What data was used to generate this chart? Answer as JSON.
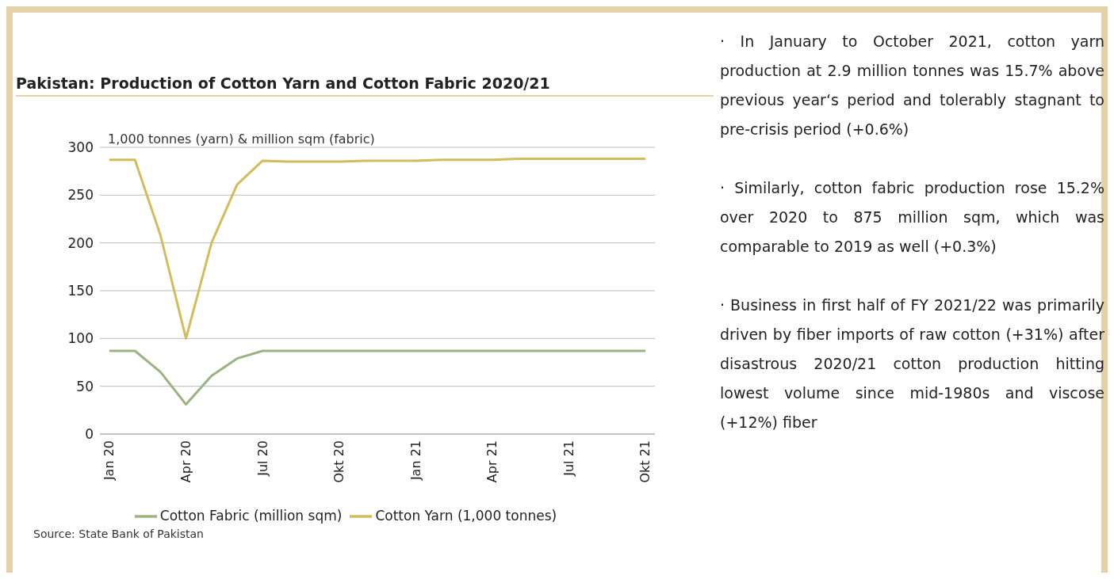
{
  "chart_data": {
    "type": "line",
    "title": "Pakistan: Production of Cotton Yarn and Cotton Fabric 2020/21",
    "ylabel": "1,000 tonnes (yarn) & million sqm (fabric)",
    "categories": [
      "Jan 20",
      null,
      null,
      "Apr 20",
      null,
      null,
      "Jul 20",
      null,
      null,
      "Okt 20",
      null,
      null,
      "Jan 21",
      null,
      null,
      "Apr 21",
      null,
      null,
      "Jul 21",
      null,
      null,
      "Okt 21"
    ],
    "series": [
      {
        "name": "Cotton Yarn (1,000 tonnes)",
        "color": "#d2bd5c",
        "values": [
          287,
          287,
          208,
          100,
          200,
          261,
          286,
          285,
          285,
          285,
          286,
          286,
          286,
          287,
          287,
          287,
          288,
          288,
          288,
          288,
          288,
          288
        ]
      },
      {
        "name": "Cotton Fabric (million sqm)",
        "color": "#9ab481",
        "values": [
          87,
          87,
          65,
          31,
          61,
          79,
          87,
          87,
          87,
          87,
          87,
          87,
          87,
          87,
          87,
          87,
          87,
          87,
          87,
          87,
          87,
          87
        ]
      }
    ],
    "ylim": [
      0,
      300
    ],
    "yticks": [
      0,
      50,
      100,
      150,
      200,
      250,
      300
    ],
    "grid": "y",
    "legend": "bottom",
    "marker": "none",
    "line_style": "solid",
    "annotations": [
      "Source: State Bank of Pakistan",
      "· In January to October 2021, cotton yarn production at 2.9 million tonnes was 15.7% above previous year‘s period and tolerably stagnant to pre-crisis period (+0.6%)",
      "· Similarly, cotton fabric production rose 15.2% over 2020 to 875 million sqm, which was comparable to 2019 as well (+0.3%)",
      "· Business in first half of FY 2021/22 was primarily driven by fiber imports of raw cotton (+31%) after disastrous 2020/21 cotton production hitting lowest volume since mid-1980s and viscose (+12%) fiber"
    ]
  }
}
